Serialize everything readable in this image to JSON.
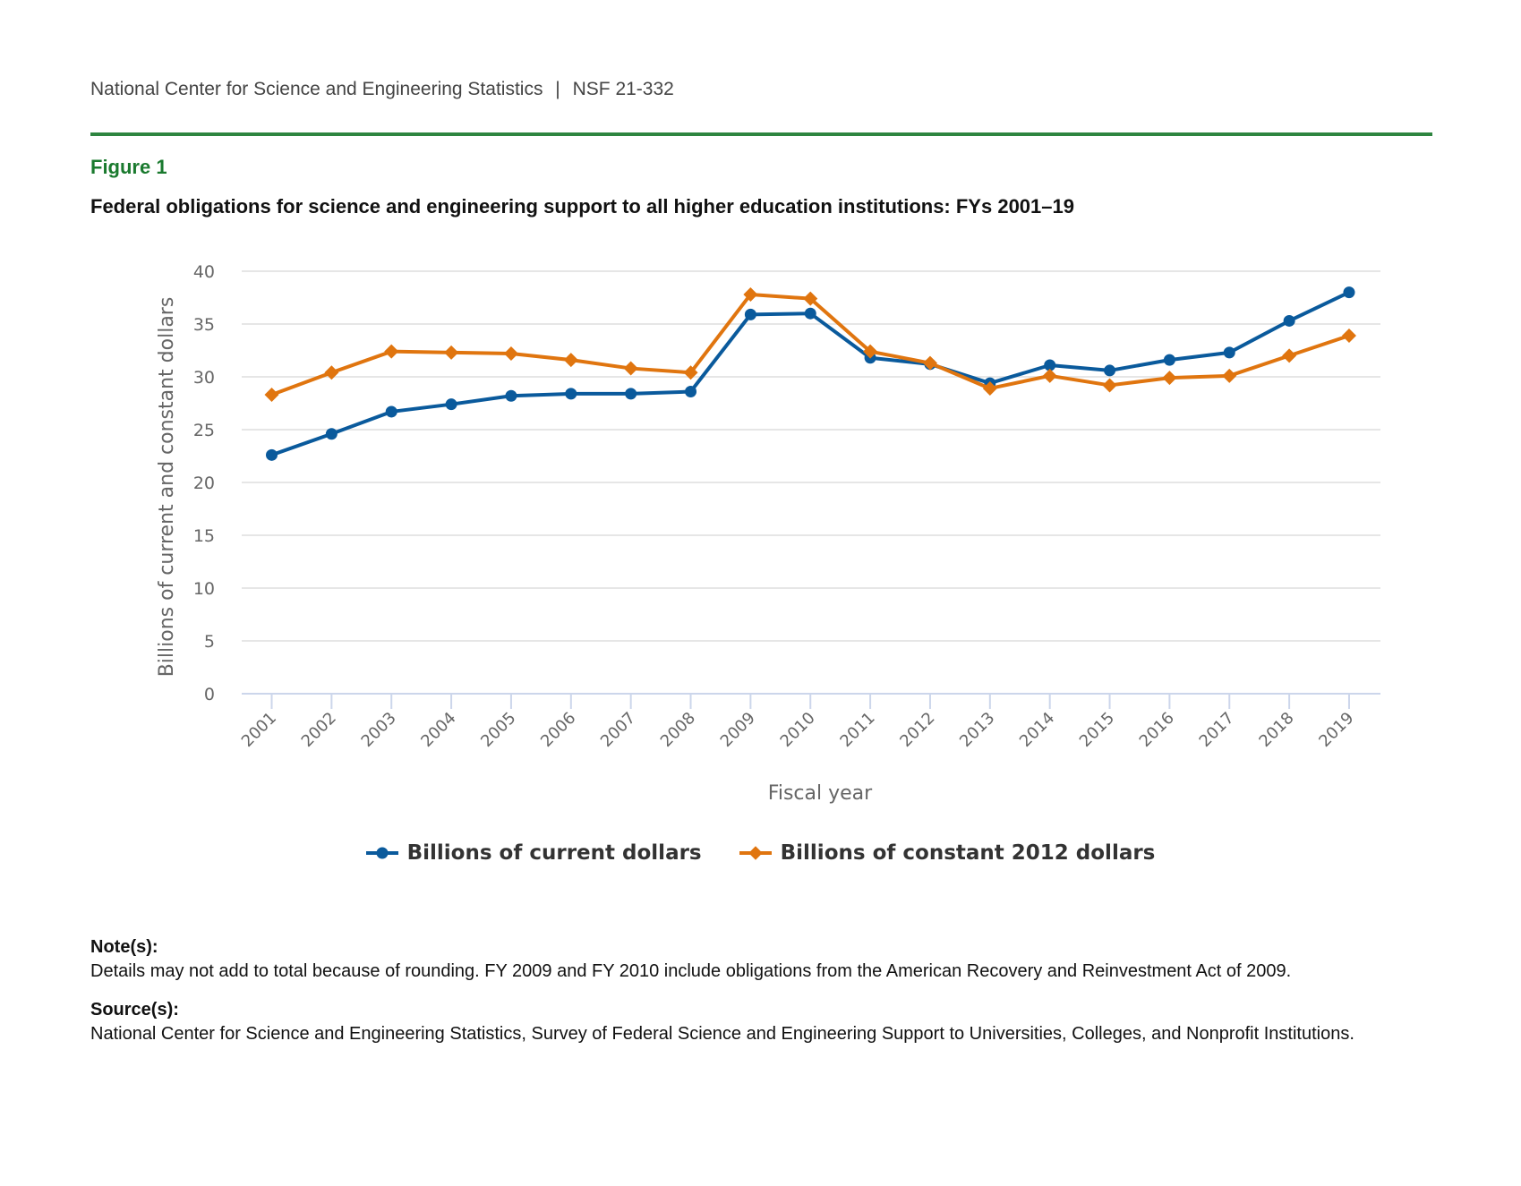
{
  "header": {
    "org": "National Center for Science and Engineering Statistics",
    "separator": "|",
    "report_id": "NSF 21-332"
  },
  "figure": {
    "label": "Figure 1",
    "title": "Federal obligations for science and engineering support to all higher education institutions: FYs 2001–19"
  },
  "colors": {
    "current": "#0a5a9c",
    "constant": "#e0750f",
    "rule": "#2e8540",
    "grid": "#e6e6e6",
    "axis": "#ccd6eb"
  },
  "chart_data": {
    "type": "line",
    "title": "Federal obligations for science and engineering support to all higher education institutions: FYs 2001–19",
    "xlabel": "Fiscal year",
    "ylabel": "Billions of current and constant dollars",
    "ylim": [
      0,
      40
    ],
    "yticks": [
      0,
      5,
      10,
      15,
      20,
      25,
      30,
      35,
      40
    ],
    "grid": true,
    "legend_position": "bottom-center",
    "categories": [
      "2001",
      "2002",
      "2003",
      "2004",
      "2005",
      "2006",
      "2007",
      "2008",
      "2009",
      "2010",
      "2011",
      "2012",
      "2013",
      "2014",
      "2015",
      "2016",
      "2017",
      "2018",
      "2019"
    ],
    "series": [
      {
        "name": "Billions of current dollars",
        "marker": "circle",
        "color": "#0a5a9c",
        "values": [
          22.6,
          24.6,
          26.7,
          27.4,
          28.2,
          28.4,
          28.4,
          28.6,
          35.9,
          36.0,
          31.8,
          31.2,
          29.4,
          31.1,
          30.6,
          31.6,
          32.3,
          35.3,
          38.0
        ]
      },
      {
        "name": "Billions of constant 2012 dollars",
        "marker": "diamond",
        "color": "#e0750f",
        "values": [
          28.3,
          30.4,
          32.4,
          32.3,
          32.2,
          31.6,
          30.8,
          30.4,
          37.8,
          37.4,
          32.4,
          31.3,
          28.9,
          30.1,
          29.2,
          29.9,
          30.1,
          32.0,
          33.9
        ]
      }
    ]
  },
  "notes": {
    "notes_heading": "Note(s):",
    "notes_text": "Details may not add to total because of rounding. FY 2009 and FY 2010 include obligations from the American Recovery and Reinvestment Act of 2009.",
    "source_heading": "Source(s):",
    "source_text": "National Center for Science and Engineering Statistics, Survey of Federal Science and Engineering Support to Universities, Colleges, and Nonprofit Institutions."
  }
}
